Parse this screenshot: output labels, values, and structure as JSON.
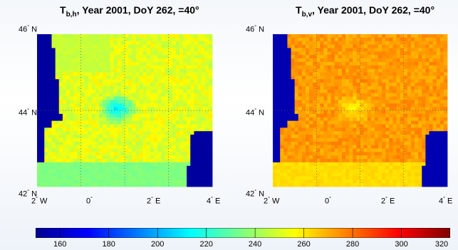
{
  "chart_data": [
    {
      "type": "heatmap",
      "title_main": "T",
      "title_sub": "b,h",
      "title_rest": ", Year 2001, DoY 262, =40°",
      "lat_labels": [
        {
          "deg": "46",
          "hem": "N"
        },
        {
          "deg": "44",
          "hem": "N"
        },
        {
          "deg": "42",
          "hem": "N"
        }
      ],
      "lon_labels": [
        {
          "deg": "2",
          "hem": "W"
        },
        {
          "deg": "0",
          "hem": ""
        },
        {
          "deg": "2",
          "hem": "E"
        },
        {
          "deg": "4",
          "hem": "E"
        }
      ],
      "lat_range": [
        42,
        46
      ],
      "lon_range": [
        -2,
        4
      ],
      "typical_range_K": [
        170,
        260
      ]
    },
    {
      "type": "heatmap",
      "title_main": "T",
      "title_sub": "b,v",
      "title_rest": ", Year 2001, DoY 262, =40°",
      "lat_labels": [
        {
          "deg": "46",
          "hem": "N"
        },
        {
          "deg": "44",
          "hem": "N"
        },
        {
          "deg": "42",
          "hem": "N"
        }
      ],
      "lon_labels": [
        {
          "deg": "2",
          "hem": "W"
        },
        {
          "deg": "0",
          "hem": ""
        },
        {
          "deg": "2",
          "hem": "E"
        },
        {
          "deg": "4",
          "hem": "E"
        }
      ],
      "lat_range": [
        42,
        46
      ],
      "lon_range": [
        -2,
        4
      ],
      "typical_range_K": [
        230,
        285
      ]
    }
  ],
  "colorbar": {
    "min": 150,
    "max": 320,
    "ticks": [
      "160",
      "180",
      "200",
      "220",
      "240",
      "260",
      "280",
      "300",
      "320"
    ],
    "colormap": "jet"
  }
}
